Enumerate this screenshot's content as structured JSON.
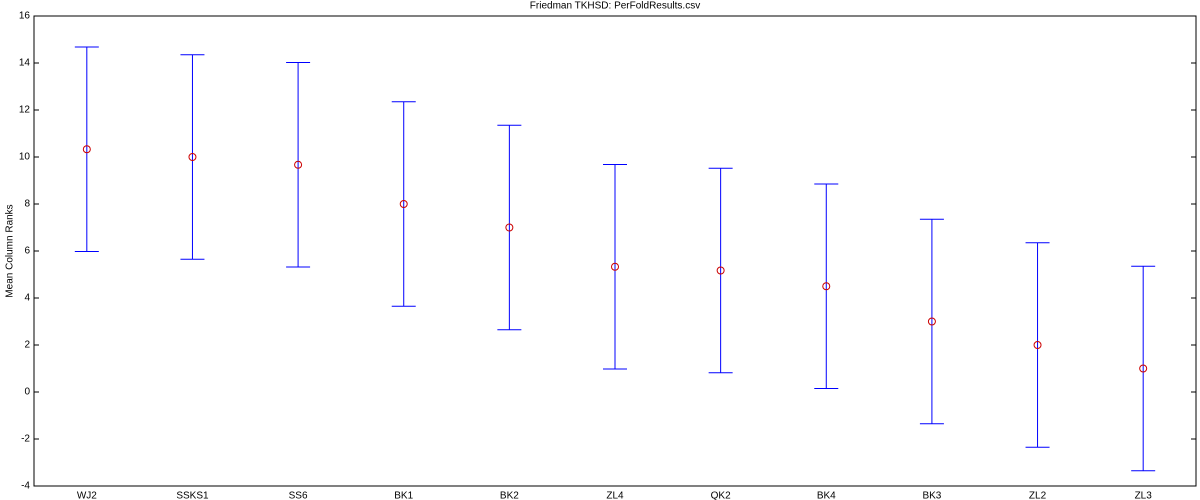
{
  "chart_data": {
    "type": "errorbar",
    "title": "Friedman TKHSD: PerFoldResults.csv",
    "y_label": "Mean Column Ranks",
    "categories": [
      "WJ2",
      "SSKS1",
      "SS6",
      "BK1",
      "BK2",
      "ZL4",
      "QK2",
      "BK4",
      "BK3",
      "ZL2",
      "ZL3"
    ],
    "values": [
      10.33,
      10.0,
      9.67,
      8.0,
      7.0,
      5.33,
      5.17,
      4.5,
      3.0,
      2.0,
      1.0
    ],
    "errors": [
      4.35,
      4.35,
      4.35,
      4.35,
      4.35,
      4.35,
      4.35,
      4.35,
      4.35,
      4.35,
      4.35
    ],
    "bar_color": "#0000ff",
    "marker_color": "#cc0000",
    "ylim": [
      -4,
      16
    ],
    "yticks": [
      -4,
      -2,
      0,
      2,
      4,
      6,
      8,
      10,
      12,
      14,
      16
    ],
    "grid": false
  }
}
